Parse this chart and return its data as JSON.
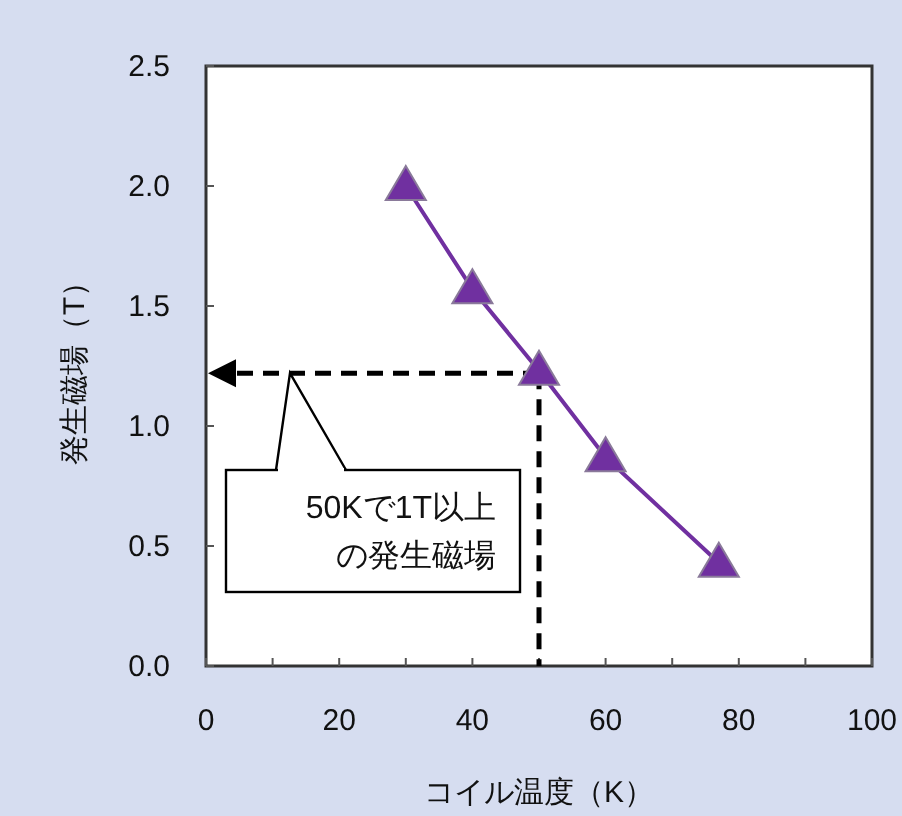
{
  "chart_data": {
    "type": "line",
    "xlabel": "コイル温度（K）",
    "ylabel": "発生磁場（T）",
    "x": [
      30,
      40,
      50,
      60,
      77
    ],
    "series": [
      {
        "color": "#7030a0",
        "values": [
          2.0,
          1.57,
          1.23,
          0.87,
          0.43
        ]
      }
    ],
    "marker": "triangle",
    "grid": false,
    "xlim": [
      0,
      100
    ],
    "xticks": [
      0,
      {
        "value": 10,
        "label": null
      },
      20,
      {
        "value": 30,
        "label": null
      },
      40,
      {
        "value": 50,
        "label": null
      },
      60,
      {
        "value": 70,
        "label": null
      },
      80,
      {
        "value": 90,
        "label": null
      },
      100
    ],
    "ylim": [
      0,
      2.5
    ],
    "yticks": [
      {
        "value": 0,
        "label": "0.0"
      },
      {
        "value": 0.5,
        "label": "0.5"
      },
      {
        "value": 1,
        "label": "1.0"
      },
      {
        "value": 1.5,
        "label": "1.5"
      },
      {
        "value": 2,
        "label": "2.0"
      },
      {
        "value": 2.5,
        "label": "2.5"
      }
    ],
    "ref_lines": [
      {
        "axis": "y",
        "value": 1.22,
        "color": "#000000",
        "line_style": "dashed"
      },
      {
        "axis": "x",
        "value": 50,
        "color": "#000000",
        "line_style": "dashed"
      }
    ],
    "annotations": [
      "50Kで1T以上の発生磁場"
    ]
  }
}
